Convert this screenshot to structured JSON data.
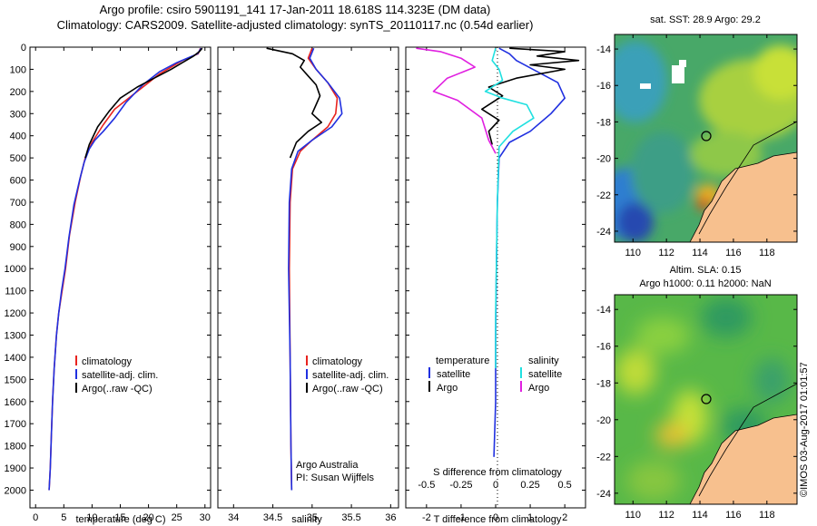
{
  "titles": {
    "line1": "Argo profile: csiro 5901191_141 17-Jan-2011 18.618S 114.323E (DM data)",
    "line2": "Climatology: CARS2009. Satellite-adjusted climatology: synTS_20110117.nc (0.54d earlier)"
  },
  "colors": {
    "climatology": "#e8231f",
    "satellite": "#2030e0",
    "argo": "#000000",
    "salinity_sat": "#20e0e0",
    "salinity_argo": "#e020e0",
    "land": "#f7c08e"
  },
  "chart_data": [
    {
      "type": "line",
      "id": "temperature_profile",
      "xlabel": "temperature (deg C)",
      "ylabel": "",
      "xlim": [
        -1,
        31
      ],
      "ylim": [
        2080,
        0
      ],
      "xticks": [
        0,
        5,
        10,
        15,
        20,
        25,
        30
      ],
      "yticks": [
        0,
        100,
        200,
        300,
        400,
        500,
        600,
        700,
        800,
        900,
        1000,
        1100,
        1200,
        1300,
        1400,
        1500,
        1600,
        1700,
        1800,
        1900,
        2000
      ],
      "legend": [
        "climatology",
        "satellite-adj. clim.",
        "Argo(..raw -QC)"
      ],
      "legend_colors": [
        "#e8231f",
        "#2030e0",
        "#000000"
      ],
      "series": [
        {
          "name": "climatology",
          "color": "#e8231f",
          "x": [
            29.2,
            28.8,
            26,
            24,
            22,
            20,
            17,
            14,
            12,
            10,
            8.8,
            8.0,
            7.0,
            6.0,
            5.3,
            4.7,
            4.1,
            3.7,
            3.3,
            3.0,
            2.8,
            2.6,
            2.4
          ],
          "y": [
            5,
            30,
            60,
            90,
            120,
            160,
            220,
            280,
            350,
            430,
            500,
            580,
            700,
            850,
            1000,
            1100,
            1200,
            1300,
            1450,
            1600,
            1750,
            1900,
            2000
          ]
        },
        {
          "name": "satellite-adj. clim.",
          "color": "#2030e0",
          "x": [
            29.3,
            28.7,
            25,
            22,
            19,
            16,
            14,
            12,
            10.5,
            9.5,
            8.6,
            7.8,
            6.8,
            5.9,
            5.2,
            4.6,
            4.1,
            3.7,
            3.3,
            3.0,
            2.8,
            2.6,
            2.4
          ],
          "y": [
            5,
            30,
            70,
            110,
            170,
            250,
            320,
            380,
            420,
            460,
            520,
            600,
            710,
            860,
            1000,
            1100,
            1200,
            1300,
            1450,
            1600,
            1750,
            1900,
            2000
          ]
        },
        {
          "name": "Argo(..raw -QC)",
          "color": "#000000",
          "x": [
            29.5,
            29.0,
            28.0,
            26,
            24,
            21,
            18,
            15,
            13,
            11,
            9.5,
            8.8
          ],
          "y": [
            5,
            20,
            40,
            70,
            100,
            140,
            180,
            230,
            290,
            360,
            440,
            500
          ]
        }
      ]
    },
    {
      "type": "line",
      "id": "salinity_profile",
      "xlabel": "salinity",
      "ylabel": "",
      "xlim": [
        33.8,
        36.1
      ],
      "ylim": [
        2080,
        0
      ],
      "xticks": [
        34,
        34.5,
        35,
        35.5,
        36
      ],
      "legend": [
        "climatology",
        "satellite-adj. clim.",
        "Argo(..raw -QC)"
      ],
      "legend_colors": [
        "#e8231f",
        "#2030e0",
        "#000000"
      ],
      "annotations": [
        "Argo Australia",
        "PI: Susan Wijffels"
      ],
      "series": [
        {
          "name": "climatology",
          "color": "#e8231f",
          "x": [
            35.0,
            34.95,
            35.05,
            35.2,
            35.32,
            35.3,
            35.2,
            35.0,
            34.85,
            34.75,
            34.72,
            34.71,
            34.72,
            34.73,
            34.74
          ],
          "y": [
            5,
            50,
            100,
            160,
            230,
            300,
            360,
            420,
            470,
            550,
            700,
            1000,
            1400,
            1800,
            2000
          ]
        },
        {
          "name": "satellite-adj. clim.",
          "color": "#2030e0",
          "x": [
            35.02,
            34.97,
            35.05,
            35.2,
            35.35,
            35.38,
            35.25,
            35.0,
            34.82,
            34.74,
            34.71,
            34.7,
            34.72,
            34.73,
            34.74
          ],
          "y": [
            5,
            50,
            100,
            160,
            230,
            300,
            360,
            420,
            470,
            550,
            700,
            1000,
            1400,
            1800,
            2000
          ]
        },
        {
          "name": "Argo(..raw -QC)",
          "color": "#000000",
          "x": [
            34.42,
            34.75,
            34.9,
            34.85,
            34.95,
            35.05,
            35.1,
            35.05,
            35.0,
            35.12,
            34.95,
            34.8,
            34.72
          ],
          "y": [
            5,
            30,
            60,
            90,
            130,
            170,
            220,
            260,
            300,
            340,
            380,
            430,
            500
          ]
        }
      ]
    },
    {
      "type": "line",
      "id": "difference_profile",
      "xlabel": "T difference from climatology",
      "xlabel_top": "S difference from climatology",
      "xlim": [
        -2.6,
        2.6
      ],
      "ylim": [
        2080,
        0
      ],
      "xticks": [
        -2,
        -1,
        0,
        1,
        2
      ],
      "xticklabels_top": [
        "-0.5",
        "-0.25",
        "0",
        "0.25",
        "0.5"
      ],
      "legend_left_title": "temperature",
      "legend_left": [
        "satellite",
        "Argo"
      ],
      "legend_left_colors": [
        "#2030e0",
        "#000000"
      ],
      "legend_right_title": "salinity",
      "legend_right": [
        "satellite",
        "Argo"
      ],
      "legend_right_colors": [
        "#20e0e0",
        "#e020e0"
      ],
      "series": [
        {
          "name": "temperature satellite",
          "color": "#2030e0",
          "x": [
            0.1,
            0.4,
            0.6,
            1.2,
            1.8,
            2.0,
            1.6,
            1.0,
            0.4,
            0.1,
            0.05,
            0.02,
            0.0,
            0.0,
            -0.05
          ],
          "y": [
            5,
            30,
            60,
            110,
            160,
            230,
            300,
            380,
            430,
            500,
            700,
            1000,
            1300,
            1600,
            1850
          ]
        },
        {
          "name": "temperature Argo",
          "color": "#000000",
          "x": [
            0.4,
            2.0,
            1.2,
            2.4,
            1.0,
            2.0,
            0.6,
            -0.2,
            0.2,
            -0.4,
            0.1,
            -0.2,
            -0.1
          ],
          "y": [
            5,
            20,
            40,
            60,
            80,
            100,
            140,
            180,
            220,
            280,
            330,
            380,
            440
          ]
        },
        {
          "name": "salinity satellite",
          "color": "#20e0e0",
          "x": [
            0.0,
            -0.1,
            0.1,
            0.2,
            -0.3,
            0.2,
            0.9,
            1.1,
            0.5,
            0.1,
            0.05,
            0.0,
            0.0
          ],
          "y": [
            5,
            60,
            100,
            150,
            200,
            230,
            260,
            320,
            380,
            450,
            700,
            1200,
            1450
          ]
        },
        {
          "name": "salinity Argo",
          "color": "#e020e0",
          "x": [
            -2.3,
            -1.6,
            -1.0,
            -0.6,
            -1.4,
            -1.8,
            -1.1,
            -0.4,
            -0.2,
            0.0
          ],
          "y": [
            5,
            20,
            50,
            90,
            140,
            200,
            240,
            320,
            420,
            480
          ]
        }
      ]
    }
  ],
  "maps": [
    {
      "title": "sat. SST: 28.9 Argo: 29.2",
      "yticks": [
        "-14",
        "-16",
        "-18",
        "-20",
        "-22",
        "-24"
      ],
      "xticks": [
        "110",
        "112",
        "114",
        "116",
        "118"
      ],
      "argo_marker": {
        "lon": 114.323,
        "lat": -18.618
      }
    },
    {
      "title_line1": "Altim. SLA: 0.15",
      "title_line2": "Argo h1000: 0.11 h2000: NaN",
      "yticks": [
        "-14",
        "-16",
        "-18",
        "-20",
        "-22",
        "-24"
      ],
      "xticks": [
        "110",
        "112",
        "114",
        "116",
        "118"
      ],
      "argo_marker": {
        "lon": 114.323,
        "lat": -18.618
      }
    }
  ],
  "stamp": "©IMOS 03-Aug-2017 01:01:57"
}
